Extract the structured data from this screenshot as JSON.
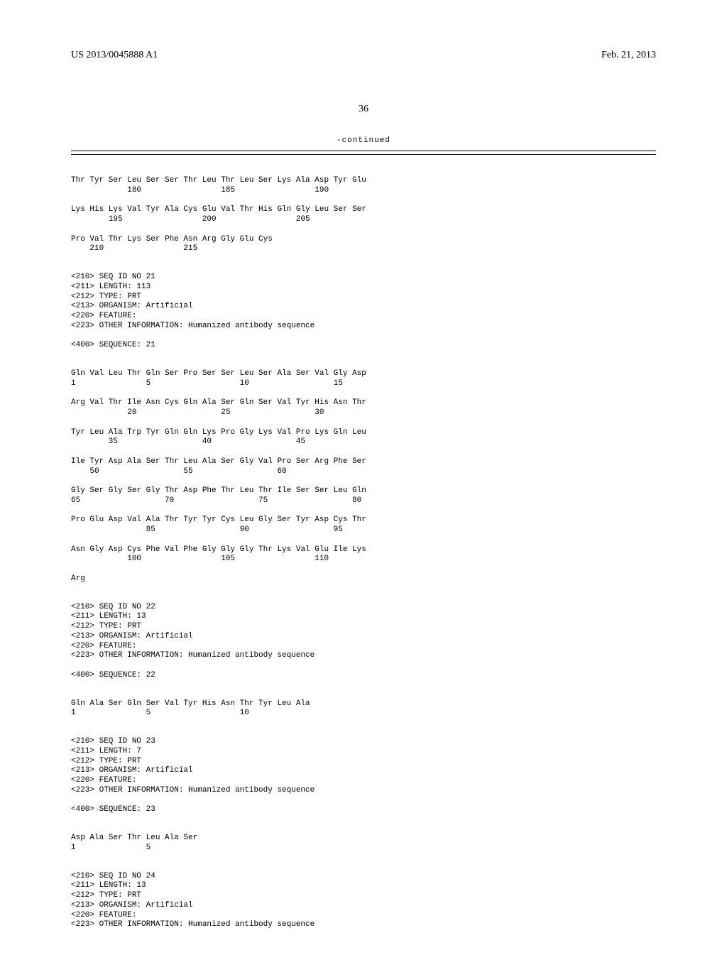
{
  "header": {
    "patent_id": "US 2013/0045888 A1",
    "pub_date": "Feb. 21, 2013"
  },
  "page_number": "36",
  "continued_label": "-continued",
  "sequences": [
    {
      "lines": [
        "Thr Tyr Ser Leu Ser Ser Thr Leu Thr Leu Ser Lys Ala Asp Tyr Glu",
        "            180                 185                 190",
        "",
        "Lys His Lys Val Tyr Ala Cys Glu Val Thr His Gln Gly Leu Ser Ser",
        "        195                 200                 205",
        "",
        "Pro Val Thr Lys Ser Phe Asn Arg Gly Glu Cys",
        "    210                 215"
      ]
    },
    {
      "meta": [
        "<210> SEQ ID NO 21",
        "<211> LENGTH: 113",
        "<212> TYPE: PRT",
        "<213> ORGANISM: Artificial",
        "<220> FEATURE:",
        "<223> OTHER INFORMATION: Humanized antibody sequence",
        "",
        "<400> SEQUENCE: 21"
      ],
      "lines": [
        "Gln Val Leu Thr Gln Ser Pro Ser Ser Leu Ser Ala Ser Val Gly Asp",
        "1               5                   10                  15",
        "",
        "Arg Val Thr Ile Asn Cys Gln Ala Ser Gln Ser Val Tyr His Asn Thr",
        "            20                  25                  30",
        "",
        "Tyr Leu Ala Trp Tyr Gln Gln Lys Pro Gly Lys Val Pro Lys Gln Leu",
        "        35                  40                  45",
        "",
        "Ile Tyr Asp Ala Ser Thr Leu Ala Ser Gly Val Pro Ser Arg Phe Ser",
        "    50                  55                  60",
        "",
        "Gly Ser Gly Ser Gly Thr Asp Phe Thr Leu Thr Ile Ser Ser Leu Gln",
        "65                  70                  75                  80",
        "",
        "Pro Glu Asp Val Ala Thr Tyr Tyr Cys Leu Gly Ser Tyr Asp Cys Thr",
        "                85                  90                  95",
        "",
        "Asn Gly Asp Cys Phe Val Phe Gly Gly Gly Thr Lys Val Glu Ile Lys",
        "            100                 105                 110",
        "",
        "Arg"
      ]
    },
    {
      "meta": [
        "<210> SEQ ID NO 22",
        "<211> LENGTH: 13",
        "<212> TYPE: PRT",
        "<213> ORGANISM: Artificial",
        "<220> FEATURE:",
        "<223> OTHER INFORMATION: Humanized antibody sequence",
        "",
        "<400> SEQUENCE: 22"
      ],
      "lines": [
        "Gln Ala Ser Gln Ser Val Tyr His Asn Thr Tyr Leu Ala",
        "1               5                   10"
      ]
    },
    {
      "meta": [
        "<210> SEQ ID NO 23",
        "<211> LENGTH: 7",
        "<212> TYPE: PRT",
        "<213> ORGANISM: Artificial",
        "<220> FEATURE:",
        "<223> OTHER INFORMATION: Humanized antibody sequence",
        "",
        "<400> SEQUENCE: 23"
      ],
      "lines": [
        "Asp Ala Ser Thr Leu Ala Ser",
        "1               5"
      ]
    },
    {
      "meta": [
        "<210> SEQ ID NO 24",
        "<211> LENGTH: 13",
        "<212> TYPE: PRT",
        "<213> ORGANISM: Artificial",
        "<220> FEATURE:",
        "<223> OTHER INFORMATION: Humanized antibody sequence"
      ],
      "lines": []
    }
  ]
}
